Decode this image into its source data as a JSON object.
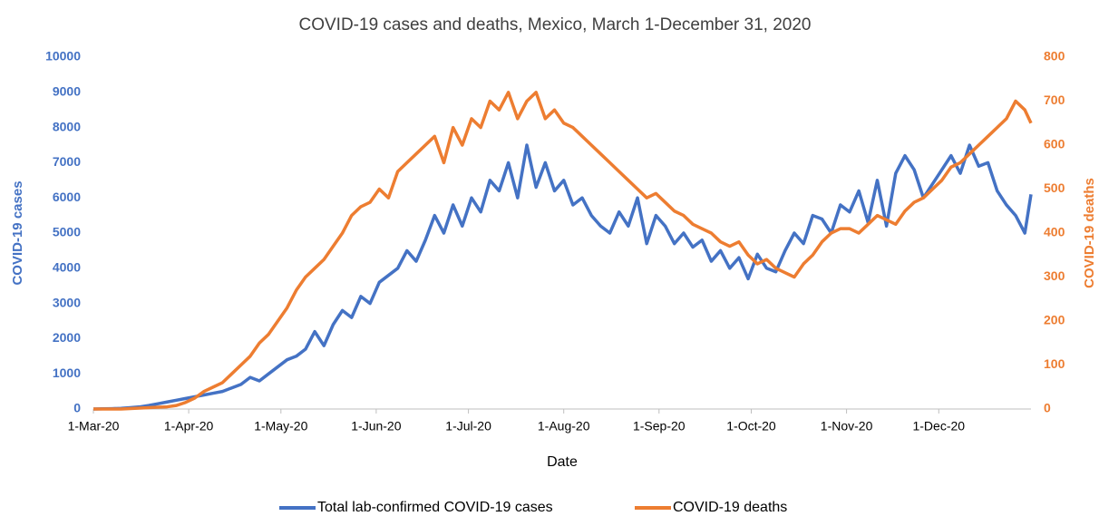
{
  "chart_data": {
    "type": "line",
    "title": "COVID-19 cases and deaths, Mexico, March 1-December 31, 2020",
    "x_label": "Date",
    "y_label": "COVID-19 cases",
    "y2_label": "COVID-19 deaths",
    "x": [
      "2020-03-01",
      "2020-03-04",
      "2020-03-07",
      "2020-03-10",
      "2020-03-13",
      "2020-03-16",
      "2020-03-19",
      "2020-03-22",
      "2020-03-25",
      "2020-03-28",
      "2020-03-31",
      "2020-04-03",
      "2020-04-06",
      "2020-04-09",
      "2020-04-12",
      "2020-04-15",
      "2020-04-18",
      "2020-04-21",
      "2020-04-24",
      "2020-04-27",
      "2020-04-30",
      "2020-05-03",
      "2020-05-06",
      "2020-05-09",
      "2020-05-12",
      "2020-05-15",
      "2020-05-18",
      "2020-05-21",
      "2020-05-24",
      "2020-05-27",
      "2020-05-30",
      "2020-06-02",
      "2020-06-05",
      "2020-06-08",
      "2020-06-11",
      "2020-06-14",
      "2020-06-17",
      "2020-06-20",
      "2020-06-23",
      "2020-06-26",
      "2020-06-29",
      "2020-07-02",
      "2020-07-05",
      "2020-07-08",
      "2020-07-11",
      "2020-07-14",
      "2020-07-17",
      "2020-07-20",
      "2020-07-23",
      "2020-07-26",
      "2020-07-29",
      "2020-08-01",
      "2020-08-04",
      "2020-08-07",
      "2020-08-10",
      "2020-08-13",
      "2020-08-16",
      "2020-08-19",
      "2020-08-22",
      "2020-08-25",
      "2020-08-28",
      "2020-08-31",
      "2020-09-03",
      "2020-09-06",
      "2020-09-09",
      "2020-09-12",
      "2020-09-15",
      "2020-09-18",
      "2020-09-21",
      "2020-09-24",
      "2020-09-27",
      "2020-09-30",
      "2020-10-03",
      "2020-10-06",
      "2020-10-09",
      "2020-10-12",
      "2020-10-15",
      "2020-10-18",
      "2020-10-21",
      "2020-10-24",
      "2020-10-27",
      "2020-10-30",
      "2020-11-02",
      "2020-11-05",
      "2020-11-08",
      "2020-11-11",
      "2020-11-14",
      "2020-11-17",
      "2020-11-20",
      "2020-11-23",
      "2020-11-26",
      "2020-11-29",
      "2020-12-02",
      "2020-12-05",
      "2020-12-08",
      "2020-12-11",
      "2020-12-14",
      "2020-12-17",
      "2020-12-20",
      "2020-12-23",
      "2020-12-26",
      "2020-12-29",
      "2020-12-31"
    ],
    "series": [
      {
        "name": "Total lab-confirmed COVID-19 cases",
        "color": "#4472c4",
        "axis": "y",
        "values": [
          0,
          5,
          10,
          20,
          40,
          60,
          100,
          150,
          200,
          250,
          300,
          350,
          400,
          450,
          500,
          600,
          700,
          900,
          800,
          1000,
          1200,
          1400,
          1500,
          1700,
          2200,
          1800,
          2400,
          2800,
          2600,
          3200,
          3000,
          3600,
          3800,
          4000,
          4500,
          4200,
          4800,
          5500,
          5000,
          5800,
          5200,
          6000,
          5600,
          6500,
          6200,
          7000,
          6000,
          7500,
          6300,
          7000,
          6200,
          6500,
          5800,
          6000,
          5500,
          5200,
          5000,
          5600,
          5200,
          6000,
          4700,
          5500,
          5200,
          4700,
          5000,
          4600,
          4800,
          4200,
          4500,
          4000,
          4300,
          3700,
          4400,
          4000,
          3900,
          4500,
          5000,
          4700,
          5500,
          5400,
          5000,
          5800,
          5600,
          6200,
          5300,
          6500,
          5200,
          6700,
          7200,
          6800,
          6000,
          6400,
          6800,
          7200,
          6700,
          7500,
          6900,
          7000,
          6200,
          5800,
          5500,
          5000,
          6100
        ]
      },
      {
        "name": "COVID-19 deaths",
        "color": "#ed7d31",
        "axis": "y2",
        "values": [
          0,
          0,
          0,
          0,
          1,
          2,
          3,
          4,
          5,
          8,
          15,
          25,
          40,
          50,
          60,
          80,
          100,
          120,
          150,
          170,
          200,
          230,
          270,
          300,
          320,
          340,
          370,
          400,
          440,
          460,
          470,
          500,
          480,
          540,
          560,
          580,
          600,
          620,
          560,
          640,
          600,
          660,
          640,
          700,
          680,
          720,
          660,
          700,
          720,
          660,
          680,
          650,
          640,
          620,
          600,
          580,
          560,
          540,
          520,
          500,
          480,
          490,
          470,
          450,
          440,
          420,
          410,
          400,
          380,
          370,
          380,
          350,
          330,
          340,
          320,
          310,
          300,
          330,
          350,
          380,
          400,
          410,
          410,
          400,
          420,
          440,
          430,
          420,
          450,
          470,
          480,
          500,
          520,
          550,
          560,
          580,
          600,
          620,
          640,
          660,
          700,
          680,
          650
        ]
      }
    ],
    "xlim": [
      "2020-03-01",
      "2020-12-31"
    ],
    "xticks": [
      {
        "value": "2020-03-01",
        "label": "1-Mar-20"
      },
      {
        "value": "2020-04-01",
        "label": "1-Apr-20"
      },
      {
        "value": "2020-05-01",
        "label": "1-May-20"
      },
      {
        "value": "2020-06-01",
        "label": "1-Jun-20"
      },
      {
        "value": "2020-07-01",
        "label": "1-Jul-20"
      },
      {
        "value": "2020-08-01",
        "label": "1-Aug-20"
      },
      {
        "value": "2020-09-01",
        "label": "1-Sep-20"
      },
      {
        "value": "2020-10-01",
        "label": "1-Oct-20"
      },
      {
        "value": "2020-11-01",
        "label": "1-Nov-20"
      },
      {
        "value": "2020-12-01",
        "label": "1-Dec-20"
      }
    ],
    "ylim": [
      0,
      10000
    ],
    "yticks": [
      0,
      1000,
      2000,
      3000,
      4000,
      5000,
      6000,
      7000,
      8000,
      9000,
      10000
    ],
    "y2lim": [
      0,
      800
    ],
    "y2ticks": [
      0,
      100,
      200,
      300,
      400,
      500,
      600,
      700,
      800
    ],
    "legend": "bottom"
  }
}
